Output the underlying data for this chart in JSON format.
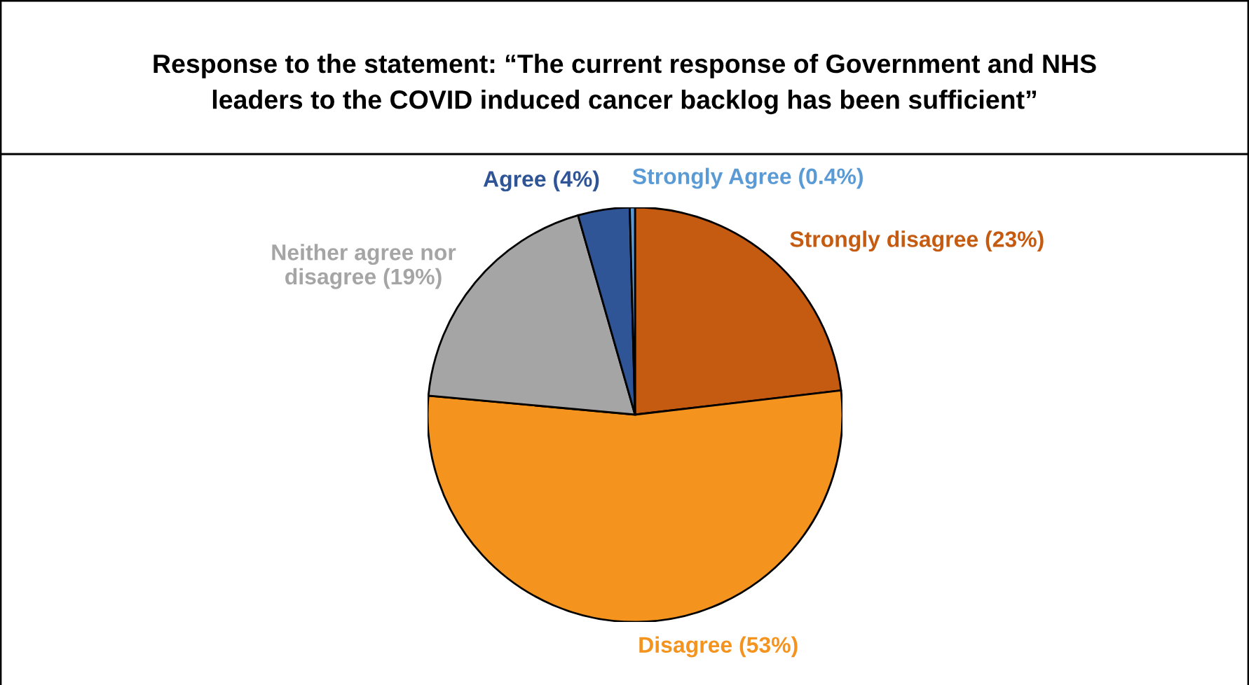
{
  "chart_data": {
    "type": "pie",
    "title": "Response to the statement: “The current response of Government and NHS\nleaders to the COVID induced cancer backlog has been sufficient”",
    "categories": [
      "Strongly disagree (23%)",
      "Disagree (53%)",
      "Neither agree nor\ndisagree (19%)",
      "Agree (4%)",
      "Strongly Agree (0.4%)"
    ],
    "values": [
      23,
      53,
      19,
      4,
      0.4
    ],
    "colors": [
      "#c55a11",
      "#f4931e",
      "#a5a5a5",
      "#2f5597",
      "#5b9bd5"
    ],
    "legend": false
  }
}
